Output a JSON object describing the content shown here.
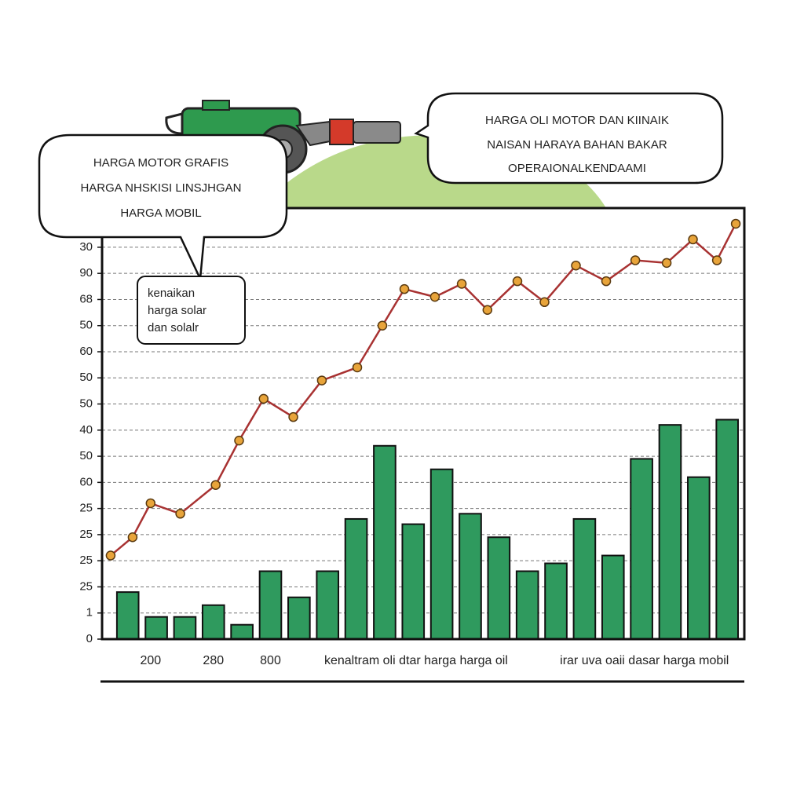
{
  "chart_data": {
    "type": "bar",
    "categories": [
      null,
      null,
      null,
      null,
      null,
      null,
      null,
      null,
      null,
      null,
      null,
      null,
      null,
      null,
      null,
      null,
      null,
      null,
      null,
      null,
      null,
      null
    ],
    "series": [
      {
        "type": "bar",
        "color": "#2f9a5e",
        "values": [
          1.8,
          0.85,
          0.85,
          1.3,
          0.55,
          2.6,
          1.6,
          2.6,
          4.6,
          7.4,
          4.4,
          6.5,
          4.8,
          3.9,
          2.6,
          2.9,
          4.6,
          3.2,
          6.9,
          8.2,
          6.2,
          8.4
        ]
      },
      {
        "type": "line",
        "color": "#a83232",
        "marker_color": "#e8a43a",
        "x": [
          -0.6,
          0.17,
          0.8,
          1.84,
          3.08,
          3.9,
          4.76,
          5.8,
          6.8,
          8.04,
          8.92,
          9.69,
          10.76,
          11.7,
          12.6,
          13.65,
          14.6,
          15.7,
          16.76,
          17.78,
          18.88,
          19.8,
          20.64,
          21.3
        ],
        "values": [
          3.2,
          3.9,
          5.2,
          4.8,
          5.9,
          7.6,
          9.2,
          8.5,
          9.9,
          10.4,
          12.0,
          13.4,
          13.1,
          13.6,
          12.6,
          13.7,
          12.9,
          14.3,
          13.7,
          14.5,
          14.4,
          15.3,
          14.5,
          15.9
        ]
      }
    ],
    "xlim": [
      -0.9,
      21.6
    ],
    "xticks": [
      {
        "value": 0.8,
        "label": "200"
      },
      {
        "value": 3,
        "label": "280"
      },
      {
        "value": 5,
        "label": "800"
      },
      {
        "value": 10.1,
        "label": "kenaltram oli dtar harga harga oil"
      },
      {
        "value": 18.1,
        "label": "irar uva oaii dasar harga mobil"
      }
    ],
    "ylim": [
      0,
      16.5
    ],
    "yticks": [
      {
        "value": 0,
        "label": "0"
      },
      {
        "value": 1,
        "label": "1"
      },
      {
        "value": 2,
        "label": "25"
      },
      {
        "value": 3,
        "label": "25"
      },
      {
        "value": 4,
        "label": "25"
      },
      {
        "value": 5,
        "label": "25"
      },
      {
        "value": 6,
        "label": "60"
      },
      {
        "value": 7,
        "label": "50"
      },
      {
        "value": 8,
        "label": "40"
      },
      {
        "value": 9,
        "label": "50"
      },
      {
        "value": 10,
        "label": "50"
      },
      {
        "value": 11,
        "label": "60"
      },
      {
        "value": 12,
        "label": "50"
      },
      {
        "value": 13,
        "label": "68"
      },
      {
        "value": 14,
        "label": "90"
      },
      {
        "value": 15,
        "label": "30"
      }
    ],
    "grid": true,
    "annotations": [
      {
        "lines": [
          "HARGA MOTOR GRAFIS",
          "HARGA NHSKISI LINSJHGAN",
          "HARGA MOBIL"
        ]
      },
      {
        "lines": [
          "HARGA OLI MOTOR DAN KIINAIK",
          "NAISAN HARAYA BAHAN BAKAR",
          "OPERAIONALKENDAAMI"
        ]
      },
      {
        "lines": [
          "kenaikan",
          "harga solar",
          "dan solalr"
        ]
      }
    ]
  }
}
